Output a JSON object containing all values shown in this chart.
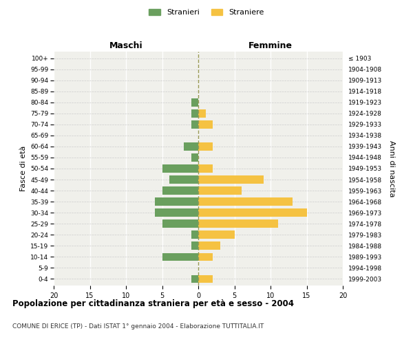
{
  "age_groups": [
    "100+",
    "95-99",
    "90-94",
    "85-89",
    "80-84",
    "75-79",
    "70-74",
    "65-69",
    "60-64",
    "55-59",
    "50-54",
    "45-49",
    "40-44",
    "35-39",
    "30-34",
    "25-29",
    "20-24",
    "15-19",
    "10-14",
    "5-9",
    "0-4"
  ],
  "birth_years": [
    "≤ 1903",
    "1904-1908",
    "1909-1913",
    "1914-1918",
    "1919-1923",
    "1924-1928",
    "1929-1933",
    "1934-1938",
    "1939-1943",
    "1944-1948",
    "1949-1953",
    "1954-1958",
    "1959-1963",
    "1964-1968",
    "1969-1973",
    "1974-1978",
    "1979-1983",
    "1984-1988",
    "1989-1993",
    "1994-1998",
    "1999-2003"
  ],
  "maschi": [
    0,
    0,
    0,
    0,
    1,
    1,
    1,
    0,
    2,
    1,
    5,
    4,
    5,
    6,
    6,
    5,
    1,
    1,
    5,
    0,
    1
  ],
  "femmine": [
    0,
    0,
    0,
    0,
    0,
    1,
    2,
    0,
    2,
    0,
    2,
    9,
    6,
    13,
    15,
    11,
    5,
    3,
    2,
    0,
    2
  ],
  "male_color": "#6a9f5e",
  "female_color": "#f5c242",
  "title": "Popolazione per cittadinanza straniera per età e sesso - 2004",
  "subtitle": "COMUNE DI ERICE (TP) - Dati ISTAT 1° gennaio 2004 - Elaborazione TUTTITALIA.IT",
  "xlabel_left": "Maschi",
  "xlabel_right": "Femmine",
  "ylabel_left": "Fasce di età",
  "ylabel_right": "Anni di nascita",
  "legend_male": "Stranieri",
  "legend_female": "Straniere",
  "xlim": 20,
  "background_color": "#ffffff",
  "plot_bg_color": "#f0f0eb"
}
